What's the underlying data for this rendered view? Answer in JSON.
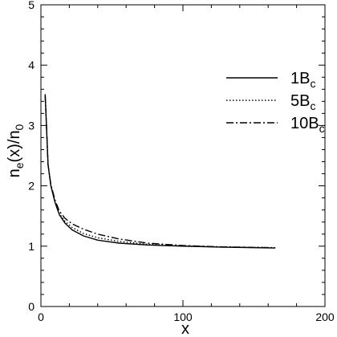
{
  "chart_data": {
    "type": "line",
    "xlabel": "x",
    "ylabel": {
      "main": "n",
      "sub1": "e",
      "mid": "(x)/n",
      "sub2": "0"
    },
    "xlim": [
      0,
      200
    ],
    "ylim": [
      0,
      5
    ],
    "x_ticks": [
      0,
      100,
      200
    ],
    "y_ticks": [
      0,
      1,
      2,
      3,
      4,
      5
    ],
    "grid": false,
    "legend_position": "right",
    "series": [
      {
        "name": {
          "main": "1B",
          "sub": "c"
        },
        "style": "solid",
        "color": "#000000",
        "x": [
          3,
          5,
          7,
          10,
          13,
          17,
          22,
          30,
          40,
          55,
          75,
          100,
          125,
          150,
          165
        ],
        "y": [
          3.52,
          2.35,
          2.0,
          1.72,
          1.52,
          1.38,
          1.27,
          1.17,
          1.1,
          1.05,
          1.02,
          1.0,
          0.985,
          0.975,
          0.97
        ]
      },
      {
        "name": {
          "main": "5B",
          "sub": "c"
        },
        "style": "dotted",
        "color": "#000000",
        "x": [
          3,
          5,
          7,
          10,
          13,
          17,
          22,
          30,
          40,
          55,
          75,
          100,
          125,
          150,
          165
        ],
        "y": [
          3.5,
          2.35,
          2.0,
          1.73,
          1.54,
          1.41,
          1.31,
          1.21,
          1.14,
          1.08,
          1.03,
          1.005,
          0.99,
          0.98,
          0.975
        ]
      },
      {
        "name": {
          "main": "10B",
          "sub": "c"
        },
        "style": "dashdot",
        "color": "#000000",
        "x": [
          3,
          5,
          7,
          10,
          13,
          17,
          22,
          30,
          40,
          55,
          75,
          100,
          125,
          150,
          165
        ],
        "y": [
          3.5,
          2.35,
          2.02,
          1.76,
          1.58,
          1.46,
          1.37,
          1.28,
          1.2,
          1.12,
          1.05,
          1.01,
          0.99,
          0.98,
          0.975
        ]
      }
    ]
  }
}
